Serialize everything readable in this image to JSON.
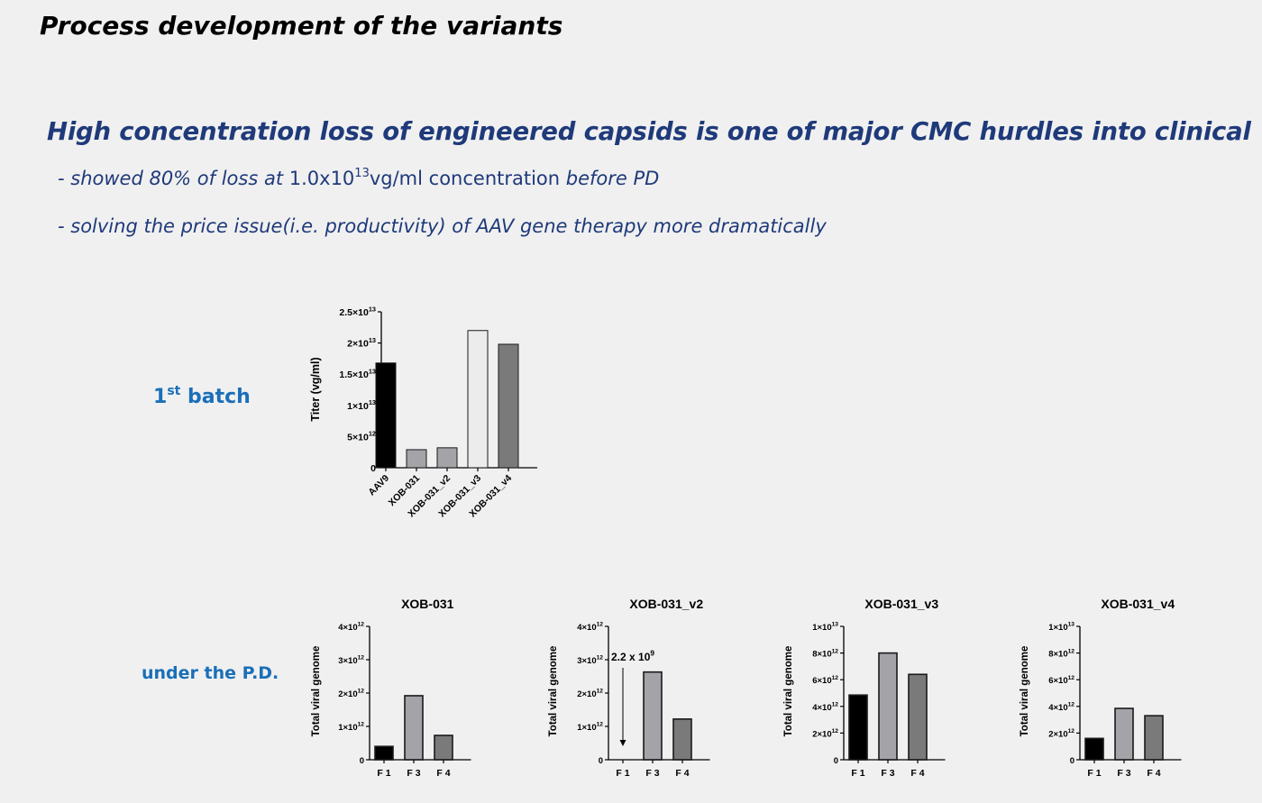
{
  "slide": {
    "title": "Process development of the variants",
    "headline": "High concentration loss of engineered capsids is one of major CMC hurdles into clinical",
    "bullet1": {
      "prefix": "- showed 80% of loss at ",
      "value": "1.0x10",
      "exp": "13",
      "unit": "vg/ml concentration ",
      "suffix": "before PD"
    },
    "bullet2": "- solving the price issue(i.e. productivity) of AAV gene therapy more dramatically",
    "row1_label": {
      "num": "1",
      "sup": "st",
      "text": " batch"
    },
    "row2_label": "under the P.D."
  },
  "chart_data": [
    {
      "type": "bar",
      "title": "",
      "ylabel": "Titer (vg/ml)",
      "categories": [
        "AAV9",
        "XOB-031",
        "XOB-031_v2",
        "XOB-031_v3",
        "XOB-031_v4"
      ],
      "values": [
        16800000000000.0,
        2900000000000.0,
        3200000000000.0,
        22000000000000.0,
        19800000000000.0
      ],
      "colors": [
        "#000000",
        "#a3a3a8",
        "#a3a3a8",
        "#ececec",
        "#7a7a7a"
      ],
      "ylim": [
        0,
        25000000000000.0
      ],
      "ticks": [
        {
          "v": 0,
          "m": "0",
          "e": ""
        },
        {
          "v": 5000000000000.0,
          "m": "5×10",
          "e": "12"
        },
        {
          "v": 10000000000000.0,
          "m": "1×10",
          "e": "13"
        },
        {
          "v": 15000000000000.0,
          "m": "1.5×10",
          "e": "13"
        },
        {
          "v": 20000000000000.0,
          "m": "2×10",
          "e": "13"
        },
        {
          "v": 25000000000000.0,
          "m": "2.5×10",
          "e": "13"
        }
      ]
    },
    {
      "type": "bar",
      "title": "XOB-031",
      "ylabel": "Total viral genome",
      "categories": [
        "F 1",
        "F 3",
        "F 4"
      ],
      "values": [
        400000000000.0,
        1920000000000.0,
        730000000000.0
      ],
      "colors": [
        "#000000",
        "#a3a3a8",
        "#7a7a7a"
      ],
      "ylim": [
        0,
        4000000000000.0
      ],
      "ticks": [
        {
          "v": 0,
          "m": "0",
          "e": ""
        },
        {
          "v": 1000000000000.0,
          "m": "1×10",
          "e": "12"
        },
        {
          "v": 2000000000000.0,
          "m": "2×10",
          "e": "12"
        },
        {
          "v": 3000000000000.0,
          "m": "3×10",
          "e": "12"
        },
        {
          "v": 4000000000000.0,
          "m": "4×10",
          "e": "12"
        }
      ]
    },
    {
      "type": "bar",
      "title": "XOB-031_v2",
      "ylabel": "Total viral genome",
      "categories": [
        "F 1",
        "F 3",
        "F 4"
      ],
      "values": [
        2200000000.0,
        2630000000000.0,
        1220000000000.0
      ],
      "colors": [
        "#000000",
        "#a3a3a8",
        "#7a7a7a"
      ],
      "ylim": [
        0,
        4000000000000.0
      ],
      "ticks": [
        {
          "v": 0,
          "m": "0",
          "e": ""
        },
        {
          "v": 1000000000000.0,
          "m": "1×10",
          "e": "12"
        },
        {
          "v": 2000000000000.0,
          "m": "2×10",
          "e": "12"
        },
        {
          "v": 3000000000000.0,
          "m": "3×10",
          "e": "12"
        },
        {
          "v": 4000000000000.0,
          "m": "4×10",
          "e": "12"
        }
      ],
      "annotation": {
        "m": "2.2 x 10",
        "e": "9",
        "category": "F 1"
      }
    },
    {
      "type": "bar",
      "title": "XOB-031_v3",
      "ylabel": "Total viral genome",
      "categories": [
        "F 1",
        "F 3",
        "F 4"
      ],
      "values": [
        4850000000000.0,
        8000000000000.0,
        6400000000000.0
      ],
      "colors": [
        "#000000",
        "#a3a3a8",
        "#7a7a7a"
      ],
      "ylim": [
        0,
        10000000000000.0
      ],
      "ticks": [
        {
          "v": 0,
          "m": "0",
          "e": ""
        },
        {
          "v": 2000000000000.0,
          "m": "2×10",
          "e": "12"
        },
        {
          "v": 4000000000000.0,
          "m": "4×10",
          "e": "12"
        },
        {
          "v": 6000000000000.0,
          "m": "6×10",
          "e": "12"
        },
        {
          "v": 8000000000000.0,
          "m": "8×10",
          "e": "12"
        },
        {
          "v": 10000000000000.0,
          "m": "1×10",
          "e": "13"
        }
      ]
    },
    {
      "type": "bar",
      "title": "XOB-031_v4",
      "ylabel": "Total viral genome",
      "categories": [
        "F 1",
        "F 3",
        "F 4"
      ],
      "values": [
        1600000000000.0,
        3850000000000.0,
        3300000000000.0
      ],
      "colors": [
        "#000000",
        "#a3a3a8",
        "#7a7a7a"
      ],
      "ylim": [
        0,
        10000000000000.0
      ],
      "ticks": [
        {
          "v": 0,
          "m": "0",
          "e": ""
        },
        {
          "v": 2000000000000.0,
          "m": "2×10",
          "e": "12"
        },
        {
          "v": 4000000000000.0,
          "m": "4×10",
          "e": "12"
        },
        {
          "v": 6000000000000.0,
          "m": "6×10",
          "e": "12"
        },
        {
          "v": 8000000000000.0,
          "m": "8×10",
          "e": "12"
        },
        {
          "v": 10000000000000.0,
          "m": "1×10",
          "e": "13"
        }
      ]
    }
  ]
}
